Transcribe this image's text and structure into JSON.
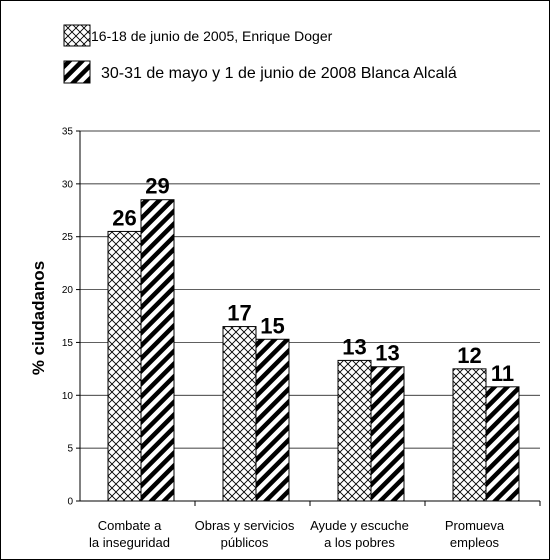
{
  "chart_data": {
    "type": "bar",
    "ylabel": "% ciudadanos",
    "ylim": [
      0,
      35
    ],
    "yticks": [
      0,
      5,
      10,
      15,
      20,
      25,
      30,
      35
    ],
    "grid": true,
    "legend_position": "top-left",
    "categories": [
      [
        "Combate a",
        "la inseguridad"
      ],
      [
        "Obras y servicios",
        "públicos"
      ],
      [
        "Ayude y escuche",
        "a los pobres"
      ],
      [
        "Promueva",
        "empleos"
      ]
    ],
    "series": [
      {
        "name": "16-18 de junio de 2005, Enrique Doger",
        "pattern": "crosshatch",
        "values": [
          25.5,
          16.5,
          13.3,
          12.5
        ],
        "labels": [
          "26",
          "17",
          "13",
          "12"
        ]
      },
      {
        "name": "30-31 de mayo y 1 de junio de 2008 Blanca Alcalá",
        "pattern": "diagonal-stripes",
        "values": [
          28.5,
          15.3,
          12.7,
          10.8
        ],
        "labels": [
          "29",
          "15",
          "13",
          "11"
        ]
      }
    ],
    "colors": {
      "bar_stroke": "#000000",
      "pattern": "#000000",
      "grid": "#000000"
    }
  }
}
